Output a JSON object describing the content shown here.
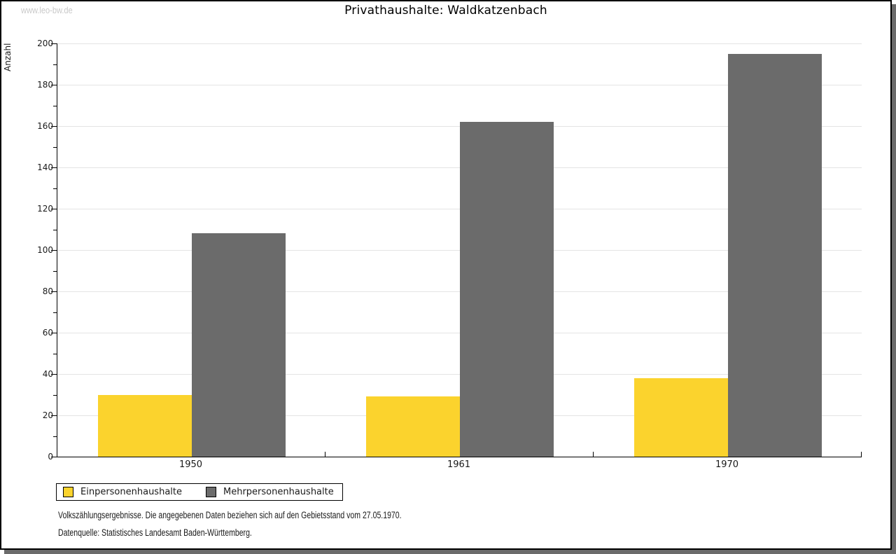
{
  "watermark": "www.leo-bw.de",
  "title": "Privathaushalte: Waldkatzenbach",
  "chart_data": {
    "type": "bar",
    "title": "Privathaushalte: Waldkatzenbach",
    "categories": [
      "1950",
      "1961",
      "1970"
    ],
    "series": [
      {
        "name": "Einpersonenhaushalte",
        "color": "#fbd32d",
        "values": [
          30,
          29,
          38
        ]
      },
      {
        "name": "Mehrpersonenhaushalte",
        "color": "#6b6b6b",
        "values": [
          108,
          162,
          195
        ]
      }
    ],
    "xlabel": "",
    "ylabel": "Anzahl",
    "ylim": [
      0,
      200
    ],
    "yticks": [
      0,
      20,
      40,
      60,
      80,
      100,
      120,
      140,
      160,
      180,
      200
    ],
    "ytick_minor_step": 10,
    "grid": true,
    "legend_position": "bottom-left",
    "bar_gap": "none within group, bars touch"
  },
  "footer": {
    "line1": "Volkszählungsergebnisse. Die angegebenen Daten beziehen sich auf den Gebietsstand vom 27.05.1970.",
    "line2": "Datenquelle: Statistisches Landesamt Baden-Württemberg."
  },
  "colors": {
    "series1": "#fbd32d",
    "series2": "#6b6b6b",
    "gridline": "#e4e4e4",
    "axis": "#000000",
    "shadow": "#6b6b6b",
    "watermark_text": "#c9c9c9"
  }
}
